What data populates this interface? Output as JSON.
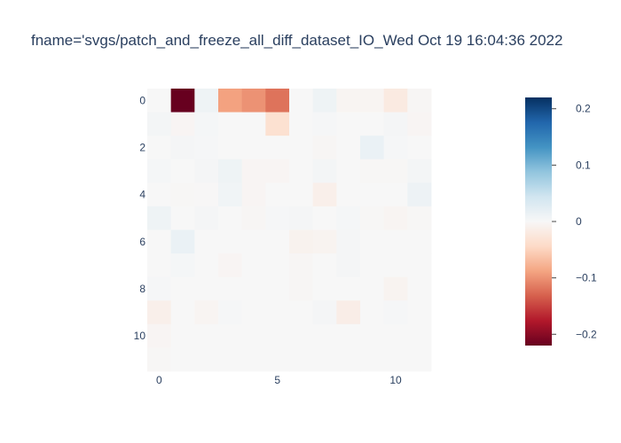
{
  "chart_data": {
    "type": "heatmap",
    "title": "fname='svgs/patch_and_freeze_all_diff_dataset_IO_Wed Oct 19 16:04:36 2022",
    "xlabel": "",
    "ylabel": "",
    "x_range": [
      -0.5,
      11.5
    ],
    "y_range": [
      -0.5,
      11.5
    ],
    "y_reversed": true,
    "x_ticks": [
      0,
      5,
      10
    ],
    "y_ticks": [
      0,
      2,
      4,
      6,
      8,
      10
    ],
    "colorbar": {
      "colorscale": "RdBu",
      "zmin": -0.22,
      "zmax": 0.22,
      "ticks": [
        0.2,
        0.1,
        0,
        -0.1,
        -0.2
      ],
      "tick_labels": [
        "0.2",
        "0.1",
        "0",
        "−0.1",
        "−0.2"
      ]
    },
    "colorscale_stops": [
      [
        0.0,
        "#67001f"
      ],
      [
        0.1,
        "#b2182b"
      ],
      [
        0.2,
        "#d6604d"
      ],
      [
        0.3,
        "#f4a582"
      ],
      [
        0.4,
        "#fddbc7"
      ],
      [
        0.5,
        "#f7f7f7"
      ],
      [
        0.6,
        "#d1e5f0"
      ],
      [
        0.7,
        "#92c5de"
      ],
      [
        0.8,
        "#4393c3"
      ],
      [
        0.9,
        "#2166ac"
      ],
      [
        1.0,
        "#053061"
      ]
    ],
    "z": [
      [
        0.0,
        -0.22,
        0.01,
        -0.09,
        -0.1,
        -0.12,
        0.0,
        0.01,
        -0.005,
        -0.005,
        -0.02,
        -0.003
      ],
      [
        0.005,
        -0.004,
        0.003,
        0.0,
        0.0,
        -0.035,
        0.0,
        0.002,
        0.0,
        0.0,
        0.004,
        -0.004
      ],
      [
        0.0,
        0.004,
        0.002,
        0.0,
        0.0,
        0.0,
        0.0,
        -0.003,
        0.0,
        0.015,
        0.002,
        0.0
      ],
      [
        0.003,
        0.0,
        0.004,
        0.01,
        -0.004,
        -0.004,
        0.0,
        0.005,
        0.0,
        -0.002,
        -0.002,
        0.005
      ],
      [
        0.0,
        -0.002,
        -0.001,
        0.008,
        -0.004,
        0.0,
        0.0,
        -0.012,
        0.0,
        0.0,
        0.0,
        0.012
      ],
      [
        0.01,
        0.0,
        0.004,
        0.0,
        -0.003,
        0.002,
        0.004,
        0.0,
        0.003,
        -0.002,
        -0.005,
        -0.002
      ],
      [
        0.0,
        0.015,
        0.0,
        0.0,
        0.0,
        0.0,
        -0.008,
        -0.006,
        0.004,
        0.0,
        0.0,
        0.0
      ],
      [
        0.0,
        0.003,
        0.0,
        -0.004,
        0.0,
        0.0,
        -0.003,
        0.0,
        0.004,
        0.0,
        0.0,
        0.0
      ],
      [
        0.002,
        0.0,
        0.0,
        0.0,
        0.0,
        0.0,
        -0.003,
        0.0,
        0.0,
        0.0,
        -0.006,
        0.0
      ],
      [
        -0.012,
        0.0,
        -0.005,
        0.002,
        0.0,
        0.0,
        0.0,
        0.004,
        -0.015,
        0.0,
        0.002,
        0.0
      ],
      [
        -0.004,
        0.0,
        0.0,
        0.0,
        0.0,
        0.0,
        0.0,
        0.0,
        0.0,
        0.0,
        0.0,
        0.0
      ],
      [
        -0.002,
        0.0,
        0.0,
        0.0,
        0.0,
        0.0,
        0.0,
        0.0,
        0.0,
        0.0,
        0.0,
        0.0
      ]
    ]
  }
}
